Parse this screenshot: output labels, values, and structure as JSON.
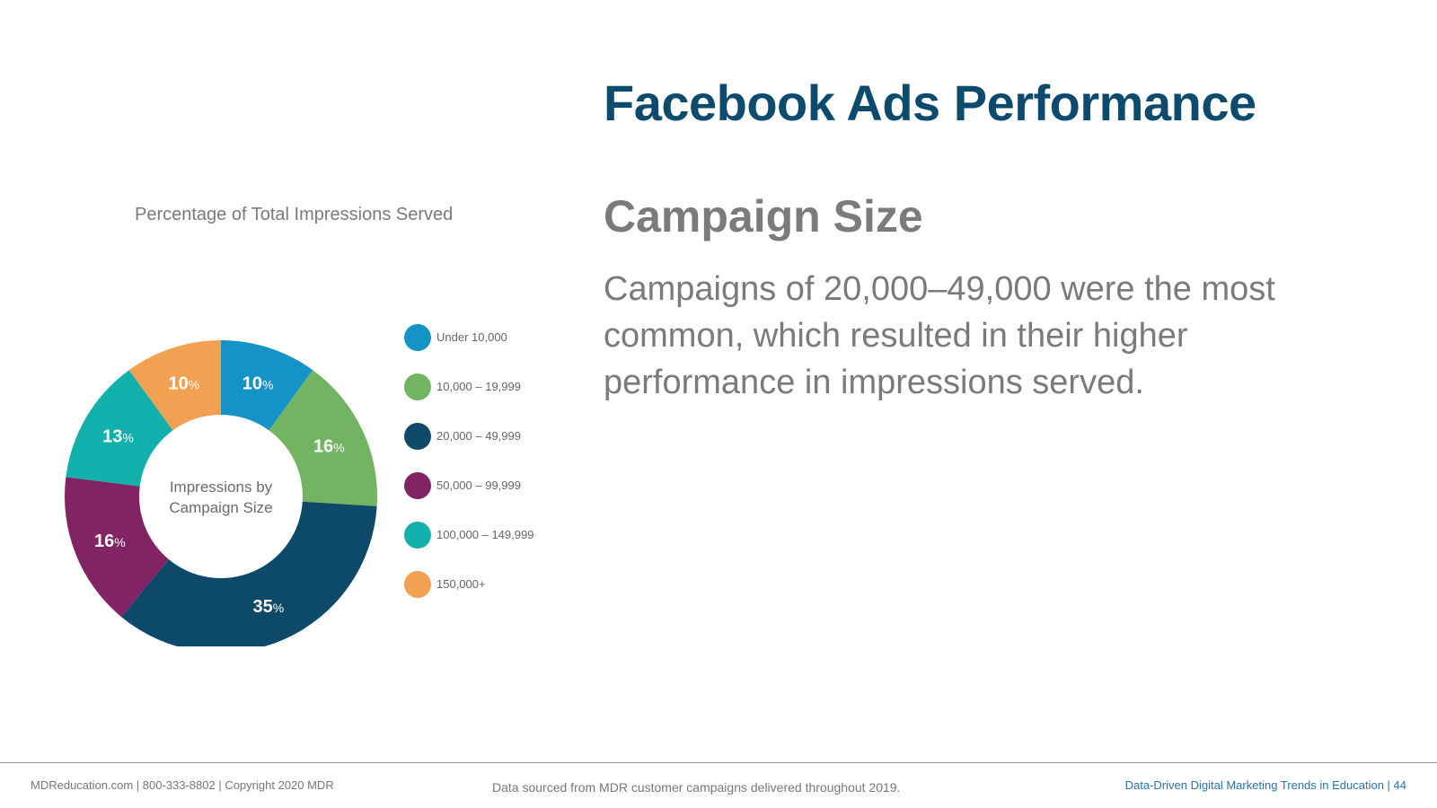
{
  "slide": {
    "title": "Facebook Ads Performance",
    "subheading": "Campaign Size",
    "body": "Campaigns of 20,000–49,000 were the most common, which resulted in their higher performance in impressions served."
  },
  "chart_data": {
    "type": "pie",
    "title": "Percentage of Total Impressions Served",
    "center_label": [
      "Impressions by",
      "Campaign Size"
    ],
    "categories": [
      "Under 10,000",
      "10,000 – 19,999",
      "20,000 – 49,999",
      "50,000 – 99,999",
      "100,000 – 149,999",
      "150,000+"
    ],
    "values": [
      10,
      16,
      35,
      16,
      13,
      10
    ],
    "unit": "%",
    "colors": [
      "#1693c6",
      "#72b462",
      "#0d4968",
      "#822463",
      "#11b0ac",
      "#f2a052"
    ],
    "legend": "right"
  },
  "footer": {
    "left": "MDReducation.com  |  800-333-8802  |  Copyright 2020 MDR",
    "center": "Data sourced from MDR customer campaigns delivered throughout 2019.",
    "right": "Data-Driven Digital Marketing Trends in Education  |  44"
  }
}
